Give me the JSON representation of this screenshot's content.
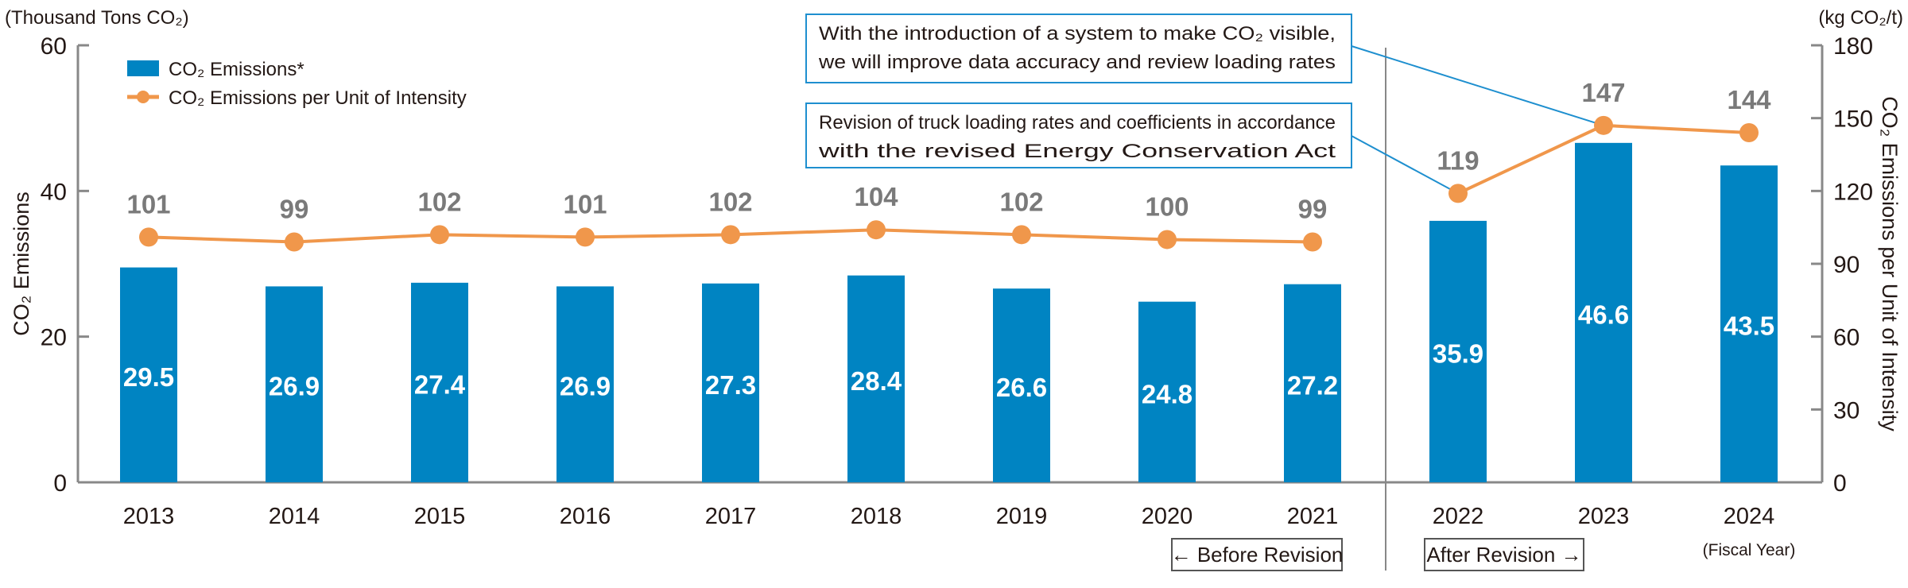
{
  "chart_data": {
    "type": "bar+line",
    "categories": [
      "2013",
      "2014",
      "2015",
      "2016",
      "2017",
      "2018",
      "2019",
      "2020",
      "2021",
      "2022",
      "2023",
      "2024"
    ],
    "x_unit_label": "(Fiscal Year)",
    "series": [
      {
        "name": "CO₂ Emissions*",
        "type": "bar",
        "axis": "left",
        "color": "#0084C2",
        "values": [
          29.5,
          26.9,
          27.4,
          26.9,
          27.3,
          28.4,
          26.6,
          24.8,
          27.2,
          35.9,
          46.6,
          43.5
        ]
      },
      {
        "name": "CO₂ Emissions per Unit of Intensity",
        "type": "line",
        "axis": "right",
        "color": "#F0974B",
        "values": [
          101,
          99,
          102,
          101,
          102,
          104,
          102,
          100,
          99,
          119,
          147,
          144
        ]
      }
    ],
    "left_axis": {
      "unit": "(Thousand Tons CO₂)",
      "label": "CO₂ Emissions",
      "range": [
        0,
        60
      ],
      "ticks": [
        "0",
        "20",
        "40",
        "60"
      ]
    },
    "right_axis": {
      "unit": "(kg CO₂/t)",
      "label": "CO₂ Emissions per Unit of Intensity",
      "range": [
        0,
        180
      ],
      "ticks": [
        "0",
        "30",
        "60",
        "90",
        "120",
        "150",
        "180"
      ]
    },
    "legend_placement": "top-left",
    "grid": false,
    "annotations": [
      {
        "text_lines": [
          "With the introduction of a system to make CO₂ visible,",
          "we will improve data accuracy and review loading rates"
        ],
        "points_to": "2023"
      },
      {
        "text_lines": [
          "Revision of truck loading rates and coefficients in accordance",
          "with the revised Energy Conservation Act"
        ],
        "points_to": "2022"
      }
    ],
    "periods": {
      "before": "← Before Revision",
      "after": "After Revision →"
    },
    "label_color": "#7A7A7A"
  }
}
